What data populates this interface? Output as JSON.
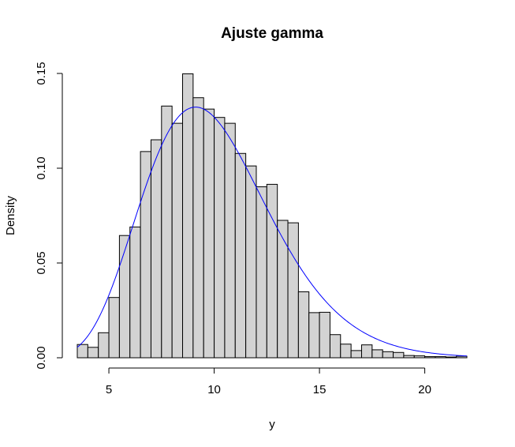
{
  "chart_data": {
    "type": "bar",
    "title": "Ajuste gamma",
    "xlabel": "y",
    "ylabel": "Density",
    "xlim": [
      3.5,
      22.0
    ],
    "ylim": [
      0,
      0.15
    ],
    "x_ticks": [
      5,
      10,
      15,
      20
    ],
    "x_tick_labels": [
      "5",
      "10",
      "15",
      "20"
    ],
    "y_ticks": [
      0.0,
      0.05,
      0.1,
      0.15
    ],
    "y_tick_labels": [
      "0.00",
      "0.05",
      "0.10",
      "0.15"
    ],
    "grid": false,
    "bin_width": 0.5,
    "bins": [
      {
        "x0": 3.5,
        "x1": 4.0,
        "density": 0.007
      },
      {
        "x0": 4.0,
        "x1": 4.5,
        "density": 0.0055
      },
      {
        "x0": 4.5,
        "x1": 5.0,
        "density": 0.0132
      },
      {
        "x0": 5.0,
        "x1": 5.5,
        "density": 0.0318
      },
      {
        "x0": 5.5,
        "x1": 6.0,
        "density": 0.0645
      },
      {
        "x0": 6.0,
        "x1": 6.5,
        "density": 0.069
      },
      {
        "x0": 6.5,
        "x1": 7.0,
        "density": 0.1088
      },
      {
        "x0": 7.0,
        "x1": 7.5,
        "density": 0.115
      },
      {
        "x0": 7.5,
        "x1": 8.0,
        "density": 0.1328
      },
      {
        "x0": 8.0,
        "x1": 8.5,
        "density": 0.1237
      },
      {
        "x0": 8.5,
        "x1": 9.0,
        "density": 0.1498
      },
      {
        "x0": 9.0,
        "x1": 9.5,
        "density": 0.1372
      },
      {
        "x0": 9.5,
        "x1": 10.0,
        "density": 0.1312
      },
      {
        "x0": 10.0,
        "x1": 10.5,
        "density": 0.1268
      },
      {
        "x0": 10.5,
        "x1": 11.0,
        "density": 0.1237
      },
      {
        "x0": 11.0,
        "x1": 11.5,
        "density": 0.1078
      },
      {
        "x0": 11.5,
        "x1": 12.0,
        "density": 0.1012
      },
      {
        "x0": 12.0,
        "x1": 12.5,
        "density": 0.0902
      },
      {
        "x0": 12.5,
        "x1": 13.0,
        "density": 0.0915
      },
      {
        "x0": 13.0,
        "x1": 13.5,
        "density": 0.0725
      },
      {
        "x0": 13.5,
        "x1": 14.0,
        "density": 0.0712
      },
      {
        "x0": 14.0,
        "x1": 14.5,
        "density": 0.0348
      },
      {
        "x0": 14.5,
        "x1": 15.0,
        "density": 0.0238
      },
      {
        "x0": 15.0,
        "x1": 15.5,
        "density": 0.024
      },
      {
        "x0": 15.5,
        "x1": 16.0,
        "density": 0.0122
      },
      {
        "x0": 16.0,
        "x1": 16.5,
        "density": 0.0072
      },
      {
        "x0": 16.5,
        "x1": 17.0,
        "density": 0.0038
      },
      {
        "x0": 17.0,
        "x1": 17.5,
        "density": 0.0068
      },
      {
        "x0": 17.5,
        "x1": 18.0,
        "density": 0.0042
      },
      {
        "x0": 18.0,
        "x1": 18.5,
        "density": 0.0032
      },
      {
        "x0": 18.5,
        "x1": 19.0,
        "density": 0.0028
      },
      {
        "x0": 19.0,
        "x1": 19.5,
        "density": 0.0012
      },
      {
        "x0": 19.5,
        "x1": 20.0,
        "density": 0.001
      },
      {
        "x0": 20.0,
        "x1": 20.5,
        "density": 0.0006
      },
      {
        "x0": 20.5,
        "x1": 21.0,
        "density": 0.0006
      },
      {
        "x0": 21.0,
        "x1": 21.5,
        "density": 0.0004
      },
      {
        "x0": 21.5,
        "x1": 22.0,
        "density": 0.0008
      }
    ],
    "fitted_curve": {
      "distribution": "gamma",
      "shape": 10.3,
      "rate": 1.02,
      "color": "#0000ff",
      "x_range": [
        3.5,
        22.0
      ]
    },
    "colors": {
      "bar_fill": "#d3d3d3",
      "bar_stroke": "#000000",
      "curve": "#0000ff"
    }
  }
}
